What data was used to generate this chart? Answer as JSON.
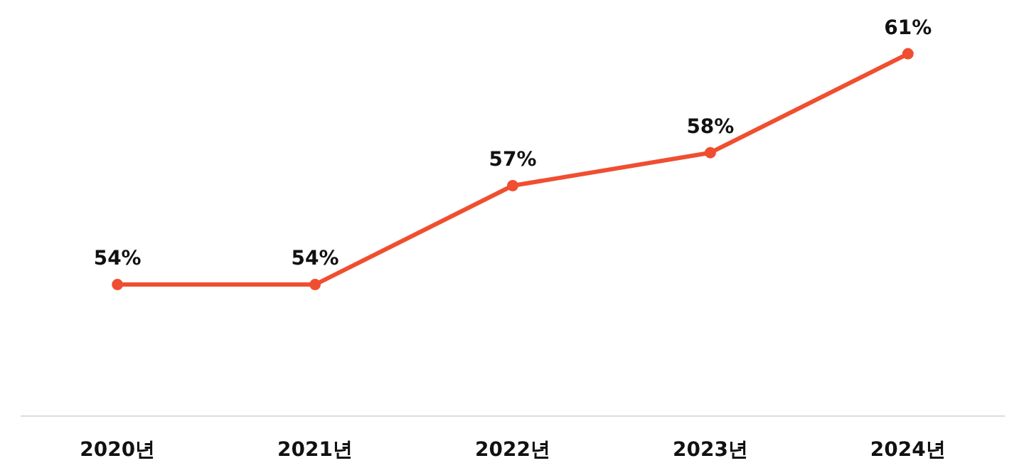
{
  "chart_data": {
    "type": "line",
    "categories": [
      "2020년",
      "2021년",
      "2022년",
      "2023년",
      "2024년"
    ],
    "series": [
      {
        "color": "#f04e30",
        "values": [
          54,
          54,
          57,
          58,
          61
        ],
        "value_labels": [
          "54%",
          "54%",
          "57%",
          "58%",
          "61%"
        ]
      }
    ],
    "marker": "circle",
    "line_style": "solid",
    "tick_labels": "x"
  }
}
